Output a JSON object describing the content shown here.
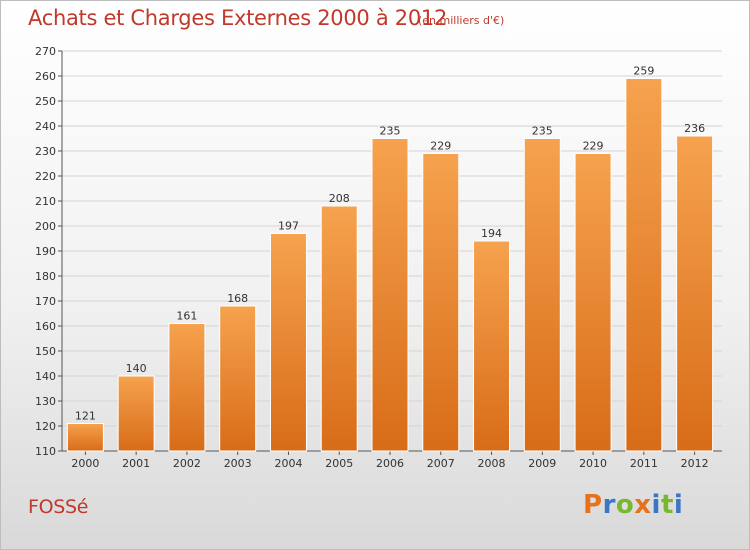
{
  "header": {
    "title": "Achats et Charges Externes 2000 à 2012",
    "subtitle": "(en milliers d'€)"
  },
  "footer": {
    "commune": "FOSSé",
    "logo_letters": [
      "P",
      "r",
      "o",
      "x",
      "i",
      "t",
      "i"
    ]
  },
  "colors": {
    "title": "#c0392b",
    "bar_top": "#f6a24e",
    "bar_bottom": "#d86c18",
    "logo": [
      "#e8721c",
      "#3a76c4",
      "#79b72e",
      "#e8721c",
      "#3a76c4",
      "#79b72e",
      "#3a76c4"
    ]
  },
  "chart_data": {
    "type": "bar",
    "categories": [
      "2000",
      "2001",
      "2002",
      "2003",
      "2004",
      "2005",
      "2006",
      "2007",
      "2008",
      "2009",
      "2010",
      "2011",
      "2012"
    ],
    "values": [
      121,
      140,
      161,
      168,
      197,
      208,
      235,
      229,
      194,
      235,
      229,
      259,
      236
    ],
    "ylim": [
      110,
      270
    ],
    "yticks": [
      110,
      120,
      130,
      140,
      150,
      160,
      170,
      180,
      190,
      200,
      210,
      220,
      230,
      240,
      250,
      260,
      270
    ],
    "grid": true,
    "data_labels": true
  }
}
